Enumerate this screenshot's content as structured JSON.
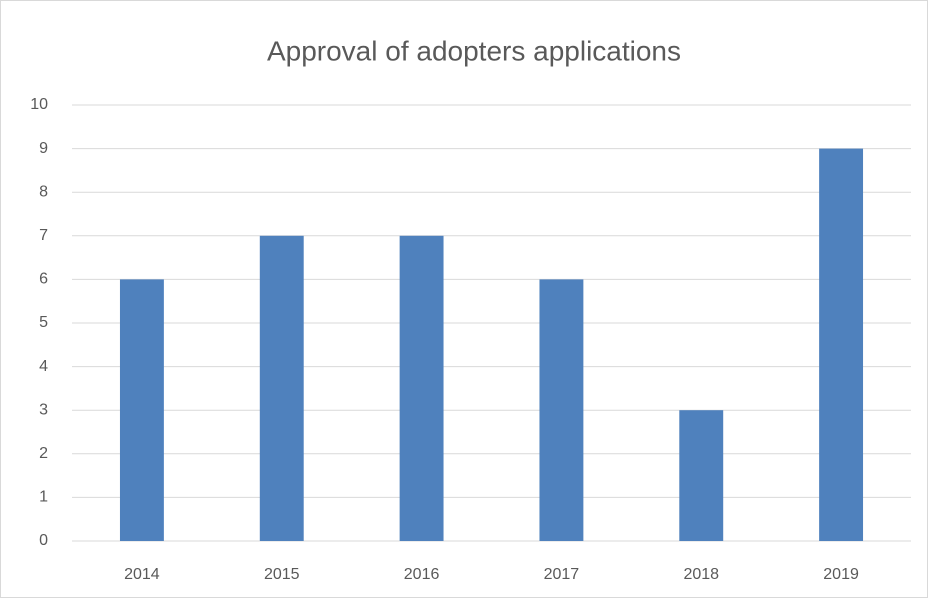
{
  "chart_data": {
    "type": "bar",
    "title": "Approval of adopters applications",
    "categories": [
      "2014",
      "2015",
      "2016",
      "2017",
      "2018",
      "2019"
    ],
    "values": [
      6,
      7,
      7,
      6,
      3,
      9
    ],
    "color": "#4f81bd",
    "ylim": [
      0,
      10
    ],
    "yticks": [
      0,
      1,
      2,
      3,
      4,
      5,
      6,
      7,
      8,
      9,
      10
    ],
    "grid": true
  }
}
